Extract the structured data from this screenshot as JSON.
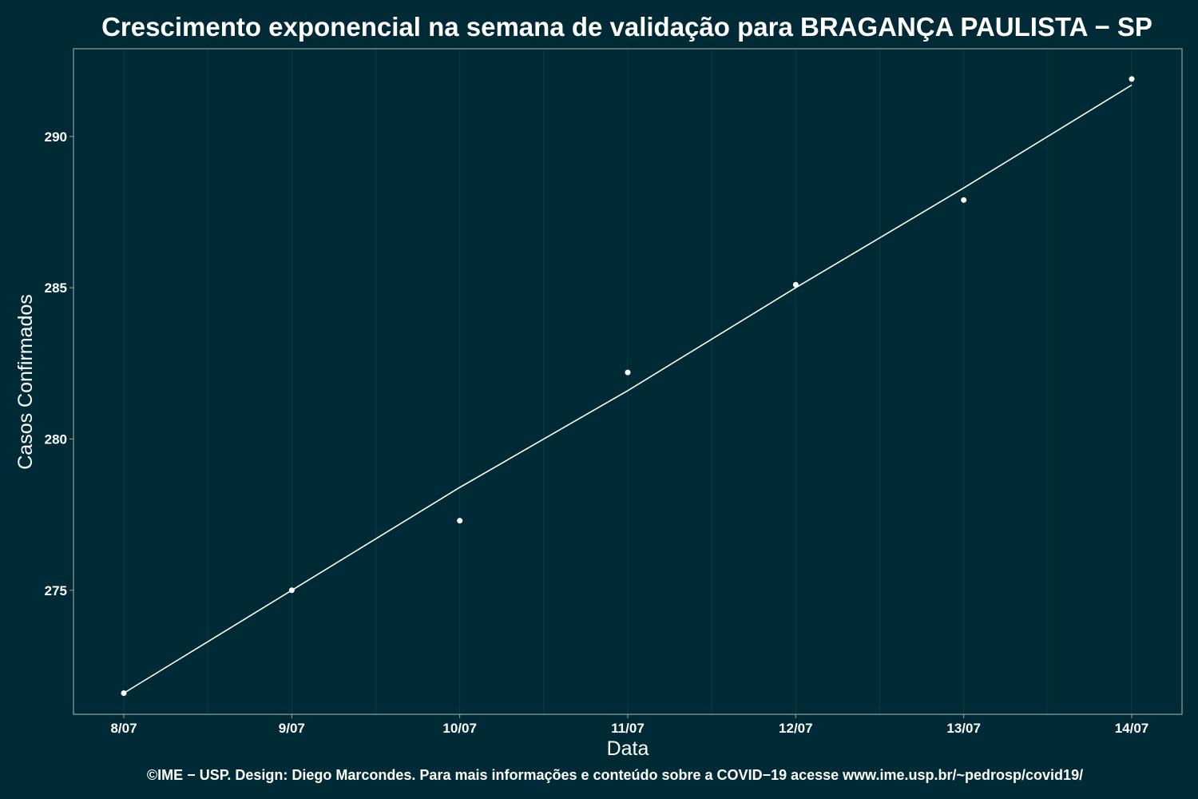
{
  "colors": {
    "background": "#002b36",
    "panel_border": "#93a1a1",
    "grid": "#0b3a45",
    "foreground": "#ffffff"
  },
  "chart_data": {
    "type": "scatter",
    "title": "Crescimento exponencial na semana de validação para BRAGANÇA PAULISTA − SP",
    "xlabel": "Data",
    "ylabel": "Casos Confirmados",
    "caption": "©IME − USP. Design: Diego Marcondes. Para mais informações e conteúdo sobre a COVID−19 acesse www.ime.usp.br/~pedrosp/covid19/",
    "categories": [
      "8/07",
      "9/07",
      "10/07",
      "11/07",
      "12/07",
      "13/07",
      "14/07"
    ],
    "series": [
      {
        "kind": "points",
        "values": [
          271.6,
          275.0,
          277.3,
          282.2,
          285.1,
          287.9,
          291.9
        ]
      },
      {
        "kind": "trend_line",
        "values": [
          271.6,
          275.0,
          278.4,
          281.6,
          285.0,
          288.3,
          291.7
        ]
      }
    ],
    "y_ticks": [
      275,
      280,
      285,
      290
    ],
    "ylim": [
      270.9,
      292.9
    ],
    "grid": true,
    "legend": "none"
  }
}
